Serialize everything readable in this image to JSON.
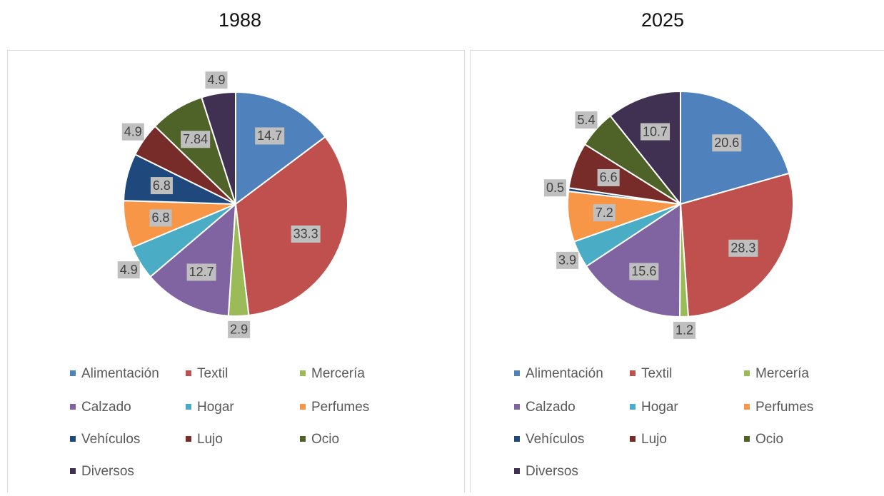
{
  "chart_data": [
    {
      "type": "pie",
      "title": "1988",
      "categories": [
        "Alimentación",
        "Textil",
        "Mercería",
        "Calzado",
        "Hogar",
        "Perfumes",
        "Vehículos",
        "Lujo",
        "Ocio",
        "Diversos"
      ],
      "values": [
        14.7,
        33.3,
        2.9,
        12.7,
        4.9,
        6.8,
        6.8,
        4.9,
        7.84,
        4.9
      ],
      "colors": [
        "#4f81bd",
        "#c0504d",
        "#9bbb59",
        "#8064a2",
        "#4bacc6",
        "#f79646",
        "#1f497d",
        "#772c2a",
        "#4f6228",
        "#403152"
      ]
    },
    {
      "type": "pie",
      "title": "2025",
      "categories": [
        "Alimentación",
        "Textil",
        "Mercería",
        "Calzado",
        "Hogar",
        "Perfumes",
        "Vehículos",
        "Lujo",
        "Ocio",
        "Diversos"
      ],
      "values": [
        20.6,
        28.3,
        1.2,
        15.6,
        3.9,
        7.2,
        0.5,
        6.6,
        5.4,
        10.7
      ],
      "colors": [
        "#4f81bd",
        "#c0504d",
        "#9bbb59",
        "#8064a2",
        "#4bacc6",
        "#f79646",
        "#1f497d",
        "#772c2a",
        "#4f6228",
        "#403152"
      ]
    }
  ]
}
